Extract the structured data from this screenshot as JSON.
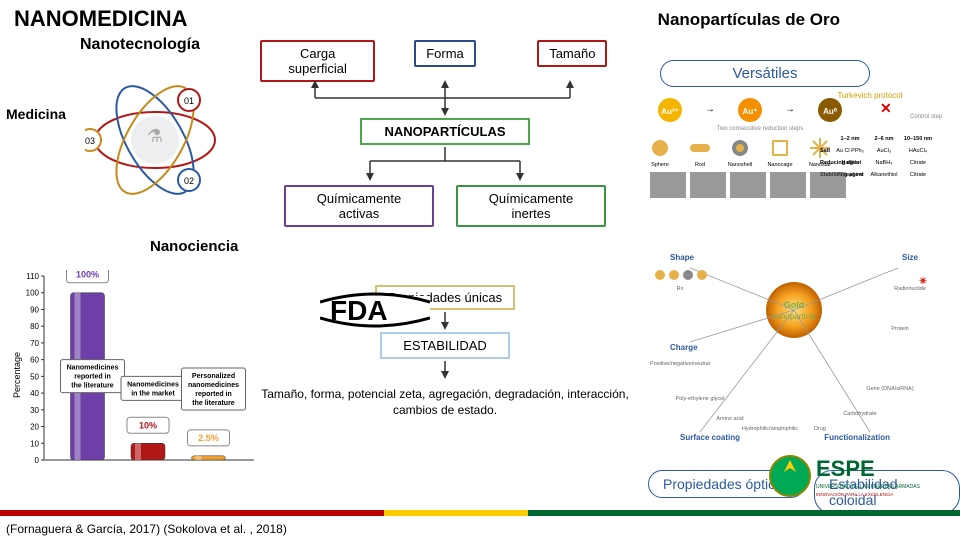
{
  "title": "NANOMEDICINA",
  "goldTitle": "Nanopartículas de Oro",
  "labels": {
    "nanotech": "Nanotecnología",
    "nanocience": "Nanociencia",
    "medicina": "Medicina",
    "versatiles": "Versátiles",
    "propOpt": "Propiedades ópticas",
    "estCol": "Estabilidad coloidal"
  },
  "flow": {
    "top": [
      {
        "text": "Carga superficial",
        "color": "#b01818"
      },
      {
        "text": "Forma",
        "color": "#2b4a8a"
      },
      {
        "text": "Tamaño",
        "color": "#b01818"
      }
    ],
    "center": "NANOPARTÍCULAS",
    "middle": [
      {
        "text": "Químicamente activas",
        "color": "#6a3f98"
      },
      {
        "text": "Químicamente inertes",
        "color": "#3a9640"
      }
    ],
    "propUnicas": "Propiedades únicas",
    "estabilidad": "ESTABILIDAD",
    "desc": "Tamaño, forma, potencial zeta, agregación, degradación, interacción, cambios de estado."
  },
  "atom": {
    "numbers": [
      "01",
      "02",
      "03"
    ]
  },
  "chart": {
    "yMax": 110,
    "yTicks": [
      0,
      10,
      20,
      30,
      40,
      50,
      60,
      70,
      80,
      90,
      100,
      110
    ],
    "bars": [
      {
        "label1": "Nanomedicines",
        "label2": "reported in",
        "label3": "the literature",
        "value": 100,
        "pct": "100%",
        "color": "#6e3fa8"
      },
      {
        "label1": "Nanomedicines",
        "label2": "in the market",
        "label3": "",
        "value": 10,
        "pct": "10%",
        "color": "#b01818"
      },
      {
        "label1": "Personalized",
        "label2": "nanomedicines",
        "label3": "reported in",
        "label4": "the literature",
        "value": 2.5,
        "pct": "2.5%",
        "color": "#f0a030"
      }
    ],
    "yLabel": "Percentage"
  },
  "gold": {
    "headers": [
      "Turkevich protocol"
    ],
    "auLabels": [
      "Au³⁺",
      "Au⁺",
      "Au⁰"
    ],
    "shapeRow": [
      "Sphere",
      "Rod",
      "Nanoshell",
      "Nanocage",
      "Nanostar"
    ],
    "sizeHeaders": [
      "1–2 nm",
      "2–6 nm",
      "10–150 nm"
    ],
    "sizeRows": [
      [
        "Salt",
        "Au Cl PPh₃",
        "AuCl₃",
        "HAuCl₄"
      ],
      [
        "Reducing agent",
        "NaBH₄",
        "NaBH₄",
        "Citrate"
      ],
      [
        "Stabilizing agent",
        "Phosphine",
        "Alkanethiol",
        "Citrate"
      ]
    ],
    "center": "Gold nanoparticle",
    "spokes": [
      "Shape",
      "Charge",
      "Surface coating",
      "Functionalization",
      "Size"
    ],
    "subLabels": [
      "Positive/negative/neutral",
      "Poly-ethylene glycol",
      "Amino acid",
      "Hydrophilic/amphiphilic",
      "Drug",
      "Carbohydrate",
      "Gene (DNA/siRNA)",
      "Protein",
      "Radionuclide",
      "Rx"
    ]
  },
  "fda": "FDA",
  "espe": {
    "name": "ESPE",
    "sub": "UNIVERSIDAD DE LAS FUERZAS ARMADAS",
    "sub2": "INNOVACIÓN PARA LA EXCELENCIA"
  },
  "citation": "(Fornaguera & García, 2017) (Sokolova et al. , 2018)"
}
